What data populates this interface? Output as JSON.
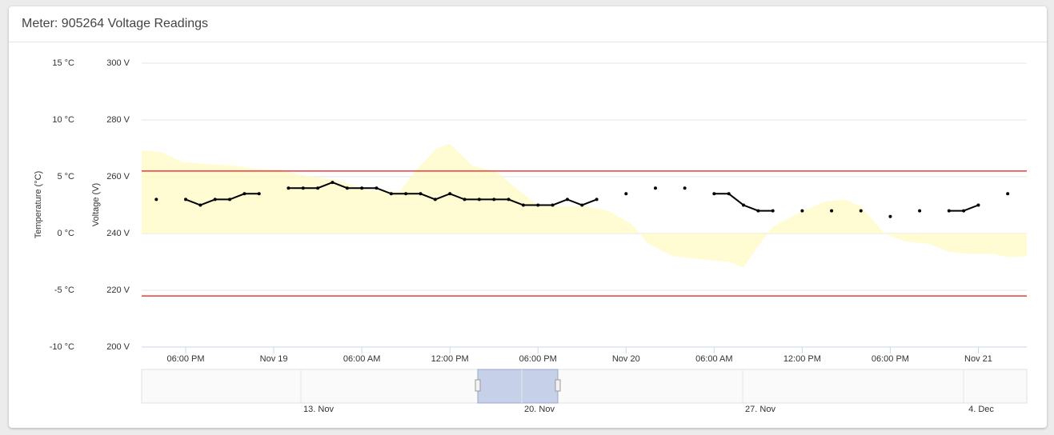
{
  "header": {
    "title": "Meter: 905264 Voltage Readings"
  },
  "chart_data": {
    "type": "line",
    "y_axis_title": "Voltage (V)",
    "y2_axis_title": "Temperature (°C)",
    "xlim": [
      -9,
      51.3
    ],
    "xticks": [
      {
        "value": -6,
        "label": "06:00 PM"
      },
      {
        "value": 0,
        "label": "Nov 19"
      },
      {
        "value": 6,
        "label": "06:00 AM"
      },
      {
        "value": 12,
        "label": "12:00 PM"
      },
      {
        "value": 18,
        "label": "06:00 PM"
      },
      {
        "value": 24,
        "label": "Nov 20"
      },
      {
        "value": 30,
        "label": "06:00 AM"
      },
      {
        "value": 36,
        "label": "12:00 PM"
      },
      {
        "value": 42,
        "label": "06:00 PM"
      },
      {
        "value": 48,
        "label": "Nov 21"
      }
    ],
    "ylim": [
      200,
      300
    ],
    "yticks": [
      {
        "value": 200,
        "label": "200 V"
      },
      {
        "value": 220,
        "label": "220 V"
      },
      {
        "value": 240,
        "label": "240 V"
      },
      {
        "value": 260,
        "label": "260 V"
      },
      {
        "value": 280,
        "label": "280 V"
      },
      {
        "value": 300,
        "label": "300 V"
      }
    ],
    "y2lim": [
      -10,
      15
    ],
    "y2ticks": [
      {
        "value": -10,
        "label": "-10 °C"
      },
      {
        "value": -5,
        "label": "-5 °C"
      },
      {
        "value": 0,
        "label": "0 °C"
      },
      {
        "value": 5,
        "label": "5 °C"
      },
      {
        "value": 10,
        "label": "10 °C"
      },
      {
        "value": 15,
        "label": "15 °C"
      }
    ],
    "grid": true,
    "plot_lines": [
      {
        "value": 262,
        "color": "#ee3b3b"
      },
      {
        "value": 218,
        "color": "#ee3b3b"
      }
    ],
    "series": [
      {
        "type": "area",
        "axis": "y2",
        "color": "#fff9c4",
        "x": [
          -9,
          -7.75,
          -6.2,
          -4.5,
          -2.9,
          -1.2,
          0.4,
          2.1,
          4.3,
          6.4,
          8.6,
          9.7,
          11.1,
          12,
          13.5,
          15.2,
          16.8,
          17.9,
          19.5,
          21.2,
          22.8,
          24.4,
          25.5,
          27.2,
          29.3,
          31,
          32,
          32.9,
          34,
          35.9,
          37.5,
          38.9,
          40,
          41.6,
          43,
          44.6,
          46,
          47.3,
          49,
          50.1,
          51.3
        ],
        "values": [
          7.3,
          7.2,
          6.3,
          6.1,
          6.0,
          5.7,
          5.6,
          5.1,
          4.7,
          3.8,
          3.7,
          5.6,
          7.5,
          7.9,
          6.0,
          5.4,
          3.7,
          2.6,
          2.4,
          2.4,
          2.0,
          0.8,
          -0.9,
          -2.0,
          -2.3,
          -2.5,
          -3.0,
          -1.3,
          0.6,
          1.9,
          2.8,
          3.0,
          2.4,
          0.0,
          -0.7,
          -0.9,
          -1.6,
          -1.8,
          -1.8,
          -2.1,
          -2.0
        ]
      },
      {
        "type": "line",
        "color": "#000000",
        "x": [
          -8,
          -7,
          -6,
          -5,
          -4,
          -3,
          -2,
          -1,
          0,
          1,
          2,
          3,
          4,
          5,
          6,
          7,
          8,
          9,
          10,
          11,
          12,
          13,
          14,
          15,
          16,
          17,
          18,
          19,
          20,
          21,
          22,
          23,
          24,
          25,
          26,
          27,
          28,
          29,
          30,
          31,
          32,
          33,
          34,
          35,
          36,
          37,
          38,
          39,
          40,
          41,
          42,
          43,
          44,
          45,
          46,
          47,
          48,
          49,
          50
        ],
        "values": [
          252,
          null,
          252,
          250,
          252,
          252,
          254,
          254,
          null,
          256,
          256,
          256,
          258,
          256,
          256,
          256,
          254,
          254,
          254,
          252,
          254,
          252,
          252,
          252,
          252,
          250,
          250,
          250,
          252,
          250,
          252,
          null,
          254,
          null,
          256,
          null,
          256,
          null,
          254,
          254,
          250,
          248,
          248,
          null,
          248,
          null,
          248,
          null,
          248,
          null,
          246,
          null,
          248,
          null,
          248,
          248,
          250,
          null,
          254
        ]
      }
    ],
    "navigator": {
      "labels": [
        "13. Nov",
        "20. Nov",
        "27. Nov",
        "4. Dec"
      ]
    }
  }
}
